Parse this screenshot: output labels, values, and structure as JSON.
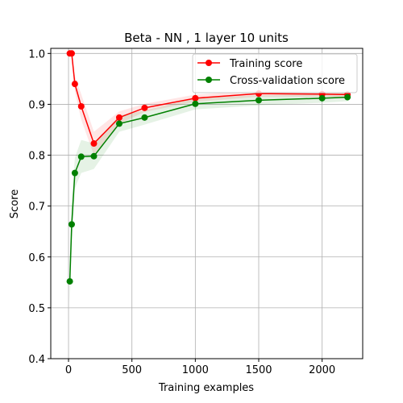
{
  "chart_data": {
    "type": "line",
    "title": "Beta - NN , 1 layer 10 units",
    "xlabel": "Training examples",
    "ylabel": "Score",
    "xlim": [
      -140,
      2320
    ],
    "ylim": [
      0.4,
      1.01
    ],
    "grid": true,
    "legend_position": "top-right",
    "x": [
      10,
      25,
      50,
      100,
      200,
      400,
      600,
      1000,
      1500,
      2000,
      2200
    ],
    "x_ticks": [
      0,
      500,
      1000,
      1500,
      2000
    ],
    "x_tick_labels": [
      "0",
      "500",
      "1000",
      "1500",
      "2000"
    ],
    "y_ticks": [
      0.4,
      0.5,
      0.6,
      0.7,
      0.8,
      0.9,
      1.0
    ],
    "y_tick_labels": [
      "0.4",
      "0.5",
      "0.6",
      "0.7",
      "0.8",
      "0.9",
      "1.0"
    ],
    "series": [
      {
        "name": "Training score",
        "color": "#ff0000",
        "values": [
          1.0,
          1.0,
          0.94,
          0.896,
          0.823,
          0.874,
          0.893,
          0.912,
          0.921,
          0.92,
          0.919
        ],
        "band_low": [
          1.0,
          1.0,
          0.925,
          0.87,
          0.8,
          0.862,
          0.885,
          0.905,
          0.915,
          0.915,
          0.914
        ],
        "band_high": [
          1.0,
          1.0,
          0.955,
          0.92,
          0.846,
          0.886,
          0.901,
          0.919,
          0.927,
          0.925,
          0.924
        ]
      },
      {
        "name": "Cross-validation score",
        "color": "#008000",
        "values": [
          0.552,
          0.664,
          0.765,
          0.797,
          0.798,
          0.862,
          0.874,
          0.901,
          0.908,
          0.912,
          0.914
        ],
        "band_low": [
          0.51,
          0.62,
          0.735,
          0.765,
          0.773,
          0.846,
          0.86,
          0.89,
          0.898,
          0.903,
          0.906
        ],
        "band_high": [
          0.595,
          0.705,
          0.795,
          0.83,
          0.823,
          0.878,
          0.888,
          0.912,
          0.918,
          0.921,
          0.922
        ]
      }
    ]
  }
}
